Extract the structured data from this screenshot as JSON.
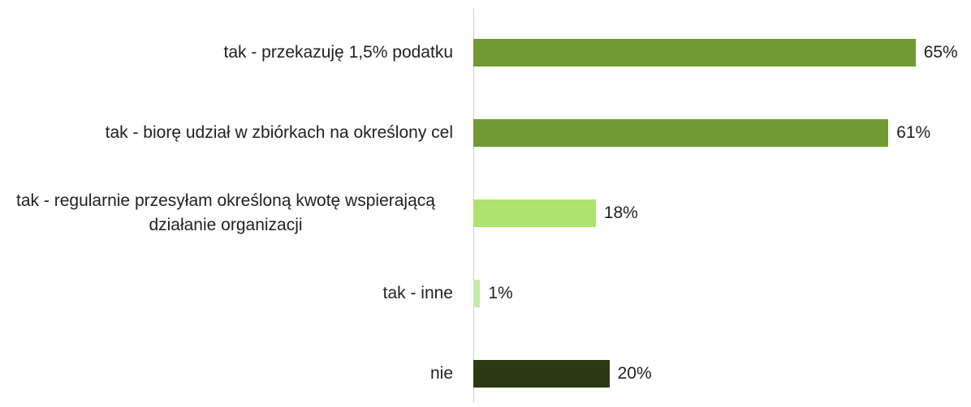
{
  "chart_data": {
    "type": "bar",
    "orientation": "horizontal",
    "categories": [
      "tak - przekazuję 1,5% podatku",
      "tak - biorę udział w zbiórkach na określony cel",
      "tak - regularnie przesyłam określoną kwotę wspierającą działanie organizacji",
      "tak - inne",
      "nie"
    ],
    "values": [
      65,
      61,
      18,
      1,
      20
    ],
    "value_labels": [
      "65%",
      "61%",
      "18%",
      "1%",
      "20%"
    ],
    "colors": [
      "#6f9a34",
      "#6f9a34",
      "#ade36f",
      "#c6e9a9",
      "#2b3a14"
    ]
  }
}
